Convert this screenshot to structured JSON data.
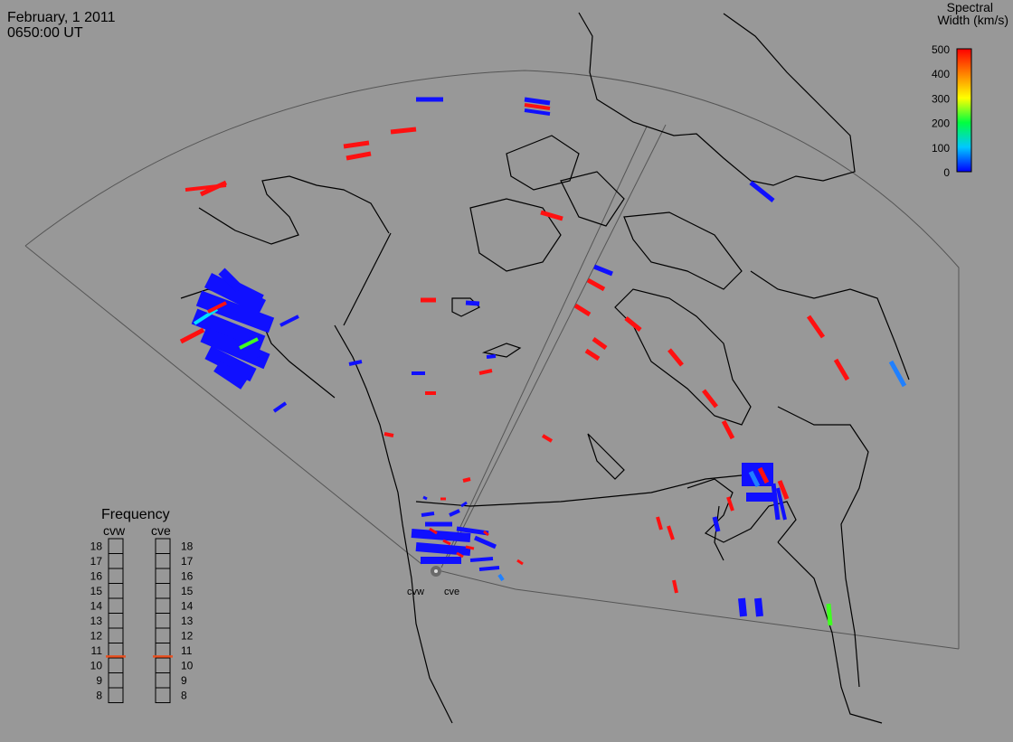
{
  "header": {
    "date": "February, 1 2011",
    "time": "0650:00 UT"
  },
  "colorbar": {
    "title_line1": "Spectral",
    "title_line2": "Width (km/s)",
    "ticks": [
      "500",
      "400",
      "300",
      "200",
      "100",
      "0"
    ],
    "colors": [
      "#0000ff",
      "#00c8ff",
      "#00ff40",
      "#ffff00",
      "#ff8000",
      "#ff0000"
    ]
  },
  "frequency_panel": {
    "title": "Frequency",
    "radars": [
      "cvw",
      "cve"
    ],
    "scale": [
      "18",
      "17",
      "16",
      "15",
      "14",
      "13",
      "12",
      "11",
      "10",
      "9",
      "8"
    ],
    "marker_mhz": [
      10.6,
      10.6
    ],
    "marker_color": "#e85020"
  },
  "map": {
    "radar_labels": [
      "cvw",
      "cve"
    ],
    "fov_line_color": "#505050",
    "coast_color": "#000000",
    "background": "#989898"
  },
  "scatter_colors": {
    "low": "#1010ff",
    "high": "#ff1010",
    "mid_cyan": "#00e0ff",
    "mid_green": "#40ff20",
    "sky_blue": "#2080ff"
  }
}
